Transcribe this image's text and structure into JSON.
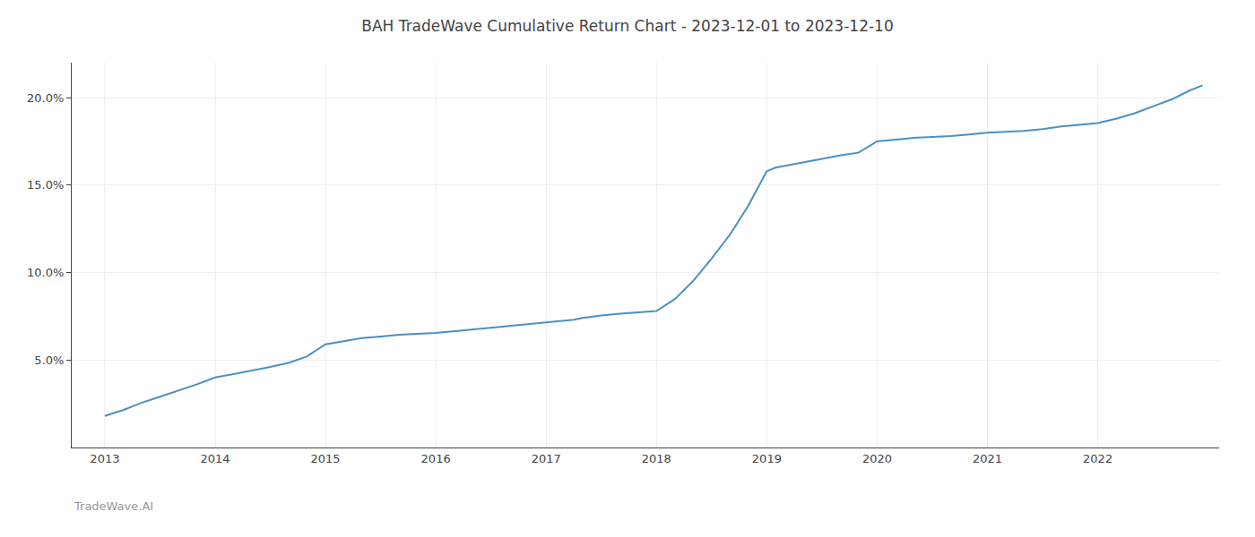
{
  "chart_data": {
    "type": "line",
    "title": "BAH TradeWave Cumulative Return Chart - 2023-12-01 to 2023-12-10",
    "annotations": [
      "TradeWave.AI"
    ],
    "color": "#4a90c4",
    "x": [
      2013.0,
      2013.08,
      2013.17,
      2013.25,
      2013.33,
      2013.5,
      2013.67,
      2013.83,
      2014.0,
      2014.17,
      2014.33,
      2014.5,
      2014.67,
      2014.83,
      2015.0,
      2015.17,
      2015.33,
      2015.5,
      2015.67,
      2015.83,
      2016.0,
      2016.17,
      2016.33,
      2016.5,
      2016.67,
      2016.83,
      2017.0,
      2017.08,
      2017.17,
      2017.25,
      2017.33,
      2017.5,
      2017.67,
      2017.83,
      2018.0,
      2018.17,
      2018.33,
      2018.5,
      2018.67,
      2018.83,
      2019.0,
      2019.08,
      2019.17,
      2019.25,
      2019.33,
      2019.5,
      2019.67,
      2019.83,
      2020.0,
      2020.17,
      2020.33,
      2020.5,
      2020.67,
      2020.83,
      2021.0,
      2021.17,
      2021.33,
      2021.5,
      2021.67,
      2021.83,
      2022.0,
      2022.17,
      2022.33,
      2022.5,
      2022.67,
      2022.83,
      2022.95
    ],
    "values": [
      1.8,
      1.95,
      2.15,
      2.35,
      2.55,
      2.9,
      3.25,
      3.6,
      4.0,
      4.2,
      4.4,
      4.6,
      4.85,
      5.2,
      5.9,
      6.1,
      6.25,
      6.35,
      6.45,
      6.5,
      6.55,
      6.65,
      6.75,
      6.85,
      6.95,
      7.05,
      7.15,
      7.2,
      7.25,
      7.3,
      7.4,
      7.55,
      7.65,
      7.72,
      7.8,
      8.5,
      9.5,
      10.8,
      12.2,
      13.8,
      15.8,
      16.0,
      16.1,
      16.2,
      16.3,
      16.5,
      16.7,
      16.85,
      17.5,
      17.6,
      17.7,
      17.75,
      17.8,
      17.9,
      18.0,
      18.05,
      18.1,
      18.2,
      18.35,
      18.45,
      18.55,
      18.8,
      19.1,
      19.5,
      19.9,
      20.4,
      20.7
    ],
    "xlim": [
      2012.7,
      2023.1
    ],
    "xticks": [
      2013,
      2014,
      2015,
      2016,
      2017,
      2018,
      2019,
      2020,
      2021,
      2022
    ],
    "ylim": [
      0,
      22
    ],
    "yticks": [
      {
        "value": 5.0,
        "label": "5.0%"
      },
      {
        "value": 10.0,
        "label": "10.0%"
      },
      {
        "value": 15.0,
        "label": "15.0%"
      },
      {
        "value": 20.0,
        "label": "20.0%"
      }
    ],
    "grid": true
  }
}
